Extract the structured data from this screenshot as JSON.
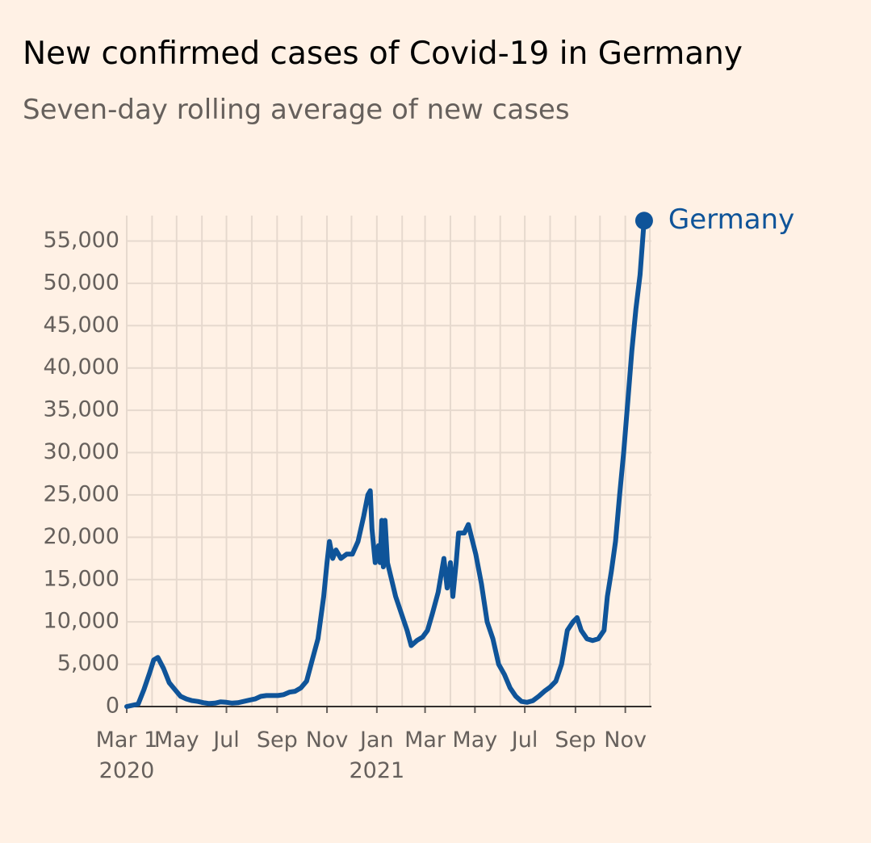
{
  "chart_data": {
    "type": "line",
    "title": "New confirmed cases of Covid-19 in Germany",
    "subtitle": "Seven-day rolling average of new cases",
    "x": [
      "2020-03-01",
      "2020-03-15",
      "2020-03-22",
      "2020-03-29",
      "2020-04-03",
      "2020-04-08",
      "2020-04-15",
      "2020-04-22",
      "2020-04-29",
      "2020-05-06",
      "2020-05-13",
      "2020-05-20",
      "2020-05-27",
      "2020-06-03",
      "2020-06-10",
      "2020-06-17",
      "2020-06-24",
      "2020-07-01",
      "2020-07-08",
      "2020-07-15",
      "2020-07-22",
      "2020-07-29",
      "2020-08-05",
      "2020-08-12",
      "2020-08-19",
      "2020-08-26",
      "2020-09-02",
      "2020-09-09",
      "2020-09-16",
      "2020-09-23",
      "2020-09-30",
      "2020-10-07",
      "2020-10-14",
      "2020-10-21",
      "2020-10-28",
      "2020-11-01",
      "2020-11-04",
      "2020-11-08",
      "2020-11-12",
      "2020-11-18",
      "2020-11-25",
      "2020-12-02",
      "2020-12-09",
      "2020-12-16",
      "2020-12-21",
      "2020-12-24",
      "2020-12-26",
      "2020-12-30",
      "2021-01-03",
      "2021-01-05",
      "2021-01-07",
      "2021-01-09",
      "2021-01-11",
      "2021-01-14",
      "2021-01-19",
      "2021-01-24",
      "2021-01-31",
      "2021-02-07",
      "2021-02-12",
      "2021-02-19",
      "2021-02-26",
      "2021-03-04",
      "2021-03-10",
      "2021-03-17",
      "2021-03-24",
      "2021-03-28",
      "2021-04-01",
      "2021-04-04",
      "2021-04-08",
      "2021-04-11",
      "2021-04-18",
      "2021-04-23",
      "2021-05-02",
      "2021-05-09",
      "2021-05-16",
      "2021-05-23",
      "2021-05-30",
      "2021-06-06",
      "2021-06-13",
      "2021-06-20",
      "2021-06-27",
      "2021-07-04",
      "2021-07-11",
      "2021-07-18",
      "2021-07-25",
      "2021-08-01",
      "2021-08-08",
      "2021-08-15",
      "2021-08-22",
      "2021-08-29",
      "2021-09-03",
      "2021-09-08",
      "2021-09-15",
      "2021-09-22",
      "2021-09-29",
      "2021-10-06",
      "2021-10-10",
      "2021-10-15",
      "2021-10-20",
      "2021-10-25",
      "2021-10-30",
      "2021-11-04",
      "2021-11-09",
      "2021-11-14",
      "2021-11-19",
      "2021-11-24"
    ],
    "series": [
      {
        "name": "Germany",
        "color": "#0f5499",
        "values": [
          0,
          300,
          2000,
          4000,
          5500,
          5800,
          4500,
          2800,
          2000,
          1200,
          900,
          700,
          600,
          450,
          350,
          400,
          550,
          500,
          400,
          450,
          600,
          750,
          900,
          1200,
          1300,
          1300,
          1300,
          1400,
          1700,
          1800,
          2200,
          3000,
          5500,
          8000,
          13000,
          17000,
          19500,
          17500,
          18500,
          17500,
          18000,
          18000,
          19500,
          22500,
          25000,
          25500,
          21000,
          17000,
          19000,
          17000,
          22000,
          16500,
          22000,
          17000,
          15000,
          13000,
          11000,
          9000,
          7200,
          7800,
          8200,
          9000,
          11000,
          13500,
          17500,
          14000,
          17000,
          13000,
          17000,
          20500,
          20500,
          21500,
          18000,
          14500,
          10000,
          8000,
          5000,
          3800,
          2200,
          1200,
          600,
          500,
          700,
          1200,
          1800,
          2300,
          3000,
          5000,
          9000,
          10000,
          10500,
          9000,
          8000,
          7800,
          8000,
          9000,
          13000,
          16000,
          19500,
          25000,
          30000,
          36000,
          42000,
          47000,
          51000,
          57400
        ]
      }
    ],
    "xlim": [
      "2020-03-01",
      "2021-11-29"
    ],
    "xticks": [
      {
        "value": "2020-03-01",
        "label": "Mar 1\n2020"
      },
      {
        "value": "2020-04-01",
        "label": null
      },
      {
        "value": "2020-05-01",
        "label": "May"
      },
      {
        "value": "2020-06-01",
        "label": null
      },
      {
        "value": "2020-07-01",
        "label": "Jul"
      },
      {
        "value": "2020-08-01",
        "label": null
      },
      {
        "value": "2020-09-01",
        "label": "Sep"
      },
      {
        "value": "2020-10-01",
        "label": null
      },
      {
        "value": "2020-11-01",
        "label": "Nov"
      },
      {
        "value": "2020-12-01",
        "label": null
      },
      {
        "value": "2021-01-01",
        "label": "Jan\n2021"
      },
      {
        "value": "2021-02-01",
        "label": null
      },
      {
        "value": "2021-03-01",
        "label": "Mar"
      },
      {
        "value": "2021-04-01",
        "label": null
      },
      {
        "value": "2021-05-01",
        "label": "May"
      },
      {
        "value": "2021-06-01",
        "label": null
      },
      {
        "value": "2021-07-01",
        "label": "Jul"
      },
      {
        "value": "2021-08-01",
        "label": null
      },
      {
        "value": "2021-09-01",
        "label": "Sep"
      },
      {
        "value": "2021-10-01",
        "label": null
      },
      {
        "value": "2021-11-01",
        "label": "Nov"
      },
      {
        "value": "2021-12-01",
        "label": null
      }
    ],
    "ylim": [
      0,
      58000
    ],
    "yticks": [
      0,
      {
        "value": 5000,
        "label": "5,000"
      },
      {
        "value": 10000,
        "label": "10,000"
      },
      {
        "value": 15000,
        "label": "15,000"
      },
      {
        "value": 20000,
        "label": "20,000"
      },
      {
        "value": 25000,
        "label": "25,000"
      },
      {
        "value": 30000,
        "label": "30,000"
      },
      {
        "value": 35000,
        "label": "35,000"
      },
      {
        "value": 40000,
        "label": "40,000"
      },
      {
        "value": 45000,
        "label": "45,000"
      },
      {
        "value": 50000,
        "label": "50,000"
      },
      {
        "value": 55000,
        "label": "55,000"
      }
    ],
    "grid": true
  }
}
